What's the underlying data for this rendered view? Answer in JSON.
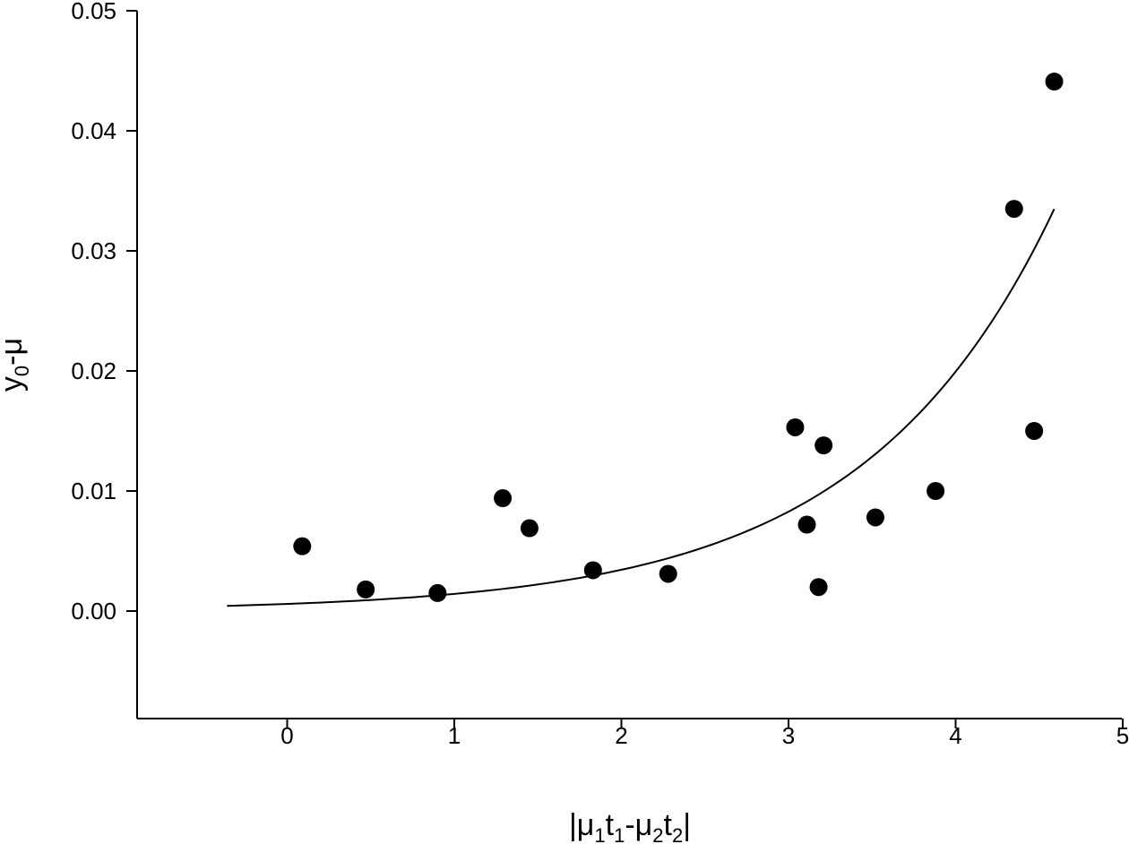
{
  "chart_data": {
    "type": "scatter",
    "title": "",
    "xlabel": "|μ1t1-μ2t2|",
    "ylabel": "y0-μ",
    "xlim": [
      -0.9,
      5
    ],
    "ylim": [
      -0.009,
      0.05
    ],
    "x_ticks": [
      0,
      1,
      2,
      3,
      4,
      5
    ],
    "x_tick_labels": [
      "0",
      "1",
      "2",
      "3",
      "4",
      "5"
    ],
    "y_ticks": [
      0.0,
      0.01,
      0.02,
      0.03,
      0.04,
      0.05
    ],
    "y_tick_labels": [
      "0.00",
      "0.01",
      "0.02",
      "0.03",
      "0.04",
      "0.05"
    ],
    "grid": false,
    "marker_color": "#000000",
    "line_color": "#000000",
    "series": [
      {
        "type": "scatter",
        "x": [
          0.09,
          0.47,
          0.9,
          1.29,
          1.45,
          1.83,
          2.28,
          3.04,
          3.11,
          3.18,
          3.21,
          3.52,
          3.88,
          4.35,
          4.47,
          4.59
        ],
        "y": [
          0.0054,
          0.0018,
          0.0015,
          0.0094,
          0.0069,
          0.0034,
          0.0031,
          0.0153,
          0.0072,
          0.002,
          0.0138,
          0.0078,
          0.01,
          0.0335,
          0.015,
          0.0441
        ]
      },
      {
        "type": "line",
        "model": "exponential fit",
        "a": 0.000593,
        "b": 0.8788,
        "x_range": [
          -0.36,
          4.59
        ]
      }
    ]
  }
}
